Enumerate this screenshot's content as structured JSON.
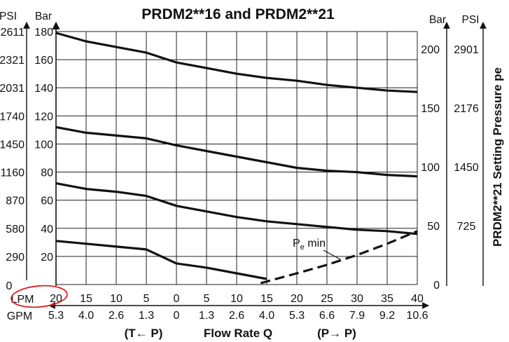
{
  "chart_data": {
    "type": "line",
    "title": "PRDM2**16 and PRDM2**21",
    "xlabel": "Flow Rate Q",
    "x_direction_left": "(T← P)",
    "x_direction_right": "(P→ P)",
    "x_unit_primary": "LPM",
    "x_unit_secondary": "GPM",
    "x_ticks_lpm": [
      "20",
      "15",
      "10",
      "5",
      "0",
      "5",
      "10",
      "15",
      "20",
      "25",
      "30",
      "35",
      "40"
    ],
    "x_ticks_gpm": [
      "5.3",
      "4.0",
      "2.6",
      "1.3",
      "0",
      "1.3",
      "2.6",
      "4.0",
      "5.3",
      "6.6",
      "7.9",
      "9.2",
      "10.6"
    ],
    "x_note": "LPM runs 20→0 for flow T←P, then 0→40 for flow P→P",
    "left_axis": {
      "units": [
        "PSI",
        "Bar"
      ],
      "ylim_bar": [
        0,
        180
      ],
      "bar_ticks": [
        "0",
        "20",
        "40",
        "60",
        "80",
        "100",
        "120",
        "140",
        "160",
        "180"
      ],
      "psi_ticks": [
        "",
        "290",
        "580",
        "870",
        "1160",
        "1450",
        "1740",
        "2031",
        "2321",
        "2611"
      ],
      "psi_zero": "0"
    },
    "right_axis": {
      "label": "PRDM2**21 Setting Pressure pe",
      "units": [
        "Bar",
        "PSI"
      ],
      "bar_ticks": [
        "0",
        "50",
        "100",
        "150",
        "200"
      ],
      "psi_ticks": [
        "725",
        "1450",
        "2176",
        "2901"
      ]
    },
    "x_lpm_signed": [
      -20,
      -15,
      -10,
      -5,
      0,
      5,
      10,
      15,
      20,
      25,
      30,
      35,
      40
    ],
    "series": [
      {
        "values": [
          179,
          173,
          169,
          165,
          158,
          154,
          150,
          147,
          145,
          142,
          140,
          138,
          137
        ]
      },
      {
        "values": [
          112,
          108,
          106,
          104,
          99,
          95,
          91,
          87,
          83,
          81,
          80,
          78,
          77
        ]
      },
      {
        "values": [
          72,
          68,
          66,
          63,
          56,
          52,
          48,
          45,
          43,
          41,
          39,
          38,
          36
        ]
      },
      {
        "values": [
          31,
          29,
          27,
          25,
          15,
          12,
          8,
          4,
          null,
          null,
          null,
          null,
          null
        ]
      }
    ],
    "annotation": {
      "text": "P",
      "subscript": "e",
      "suffix": " min",
      "curve": {
        "x": [
          14,
          20,
          25,
          30,
          35,
          40
        ],
        "y": [
          1,
          8,
          14,
          21,
          29,
          38
        ]
      }
    }
  }
}
